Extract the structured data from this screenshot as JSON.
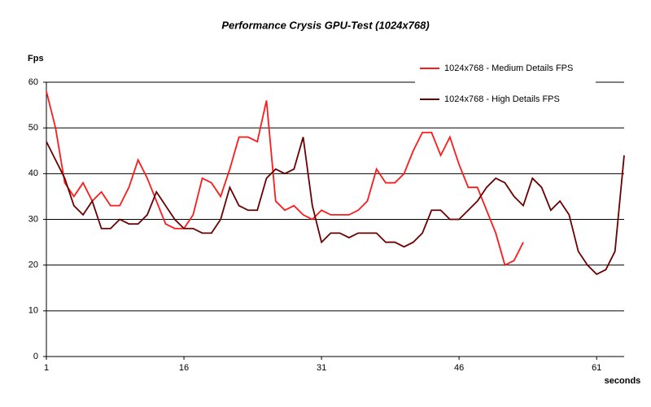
{
  "chart_data": {
    "type": "line",
    "title": "Performance Crysis GPU-Test (1024x768)",
    "y_label": "Fps",
    "x_label": "seconds",
    "x": [
      1,
      2,
      3,
      4,
      5,
      6,
      7,
      8,
      9,
      10,
      11,
      12,
      13,
      14,
      15,
      16,
      17,
      18,
      19,
      20,
      21,
      22,
      23,
      24,
      25,
      26,
      27,
      28,
      29,
      30,
      31,
      32,
      33,
      34,
      35,
      36,
      37,
      38,
      39,
      40,
      41,
      42,
      43,
      44,
      45,
      46,
      47,
      48,
      49,
      50,
      51,
      52,
      53,
      54,
      55,
      56,
      57,
      58,
      59,
      60,
      61,
      62,
      63,
      64
    ],
    "series": [
      {
        "name": "1024x768 - Medium Details FPS",
        "color": "#ff1a1a",
        "values": [
          58,
          50,
          38,
          35,
          38,
          34,
          36,
          33,
          33,
          37,
          43,
          39,
          34,
          29,
          28,
          28,
          31,
          39,
          38,
          35,
          41,
          48,
          48,
          47,
          56,
          34,
          32,
          33,
          31,
          30,
          32,
          31,
          31,
          31,
          32,
          34,
          41,
          38,
          38,
          40,
          45,
          49,
          49,
          44,
          48,
          42,
          37,
          37,
          32,
          27,
          20,
          21,
          25,
          null,
          null,
          null,
          null,
          null,
          null,
          null,
          null,
          null,
          null,
          null
        ]
      },
      {
        "name": "1024x768 - High Details FPS",
        "color": "#6b0000",
        "values": [
          47,
          43,
          39,
          33,
          31,
          34,
          28,
          28,
          30,
          29,
          29,
          31,
          36,
          33,
          30,
          28,
          28,
          27,
          27,
          30,
          37,
          33,
          32,
          32,
          39,
          41,
          40,
          41,
          48,
          33,
          25,
          27,
          27,
          26,
          27,
          27,
          27,
          25,
          25,
          24,
          25,
          27,
          32,
          32,
          30,
          30,
          32,
          34,
          37,
          39,
          38,
          35,
          33,
          39,
          37,
          32,
          34,
          31,
          23,
          20,
          18,
          19,
          23,
          44
        ]
      }
    ],
    "xlim": [
      1,
      64
    ],
    "xticks": [
      1,
      16,
      31,
      46,
      61
    ],
    "ylim": [
      0,
      60
    ],
    "yticks": [
      0,
      10,
      20,
      30,
      40,
      50,
      60
    ],
    "grid": true
  }
}
